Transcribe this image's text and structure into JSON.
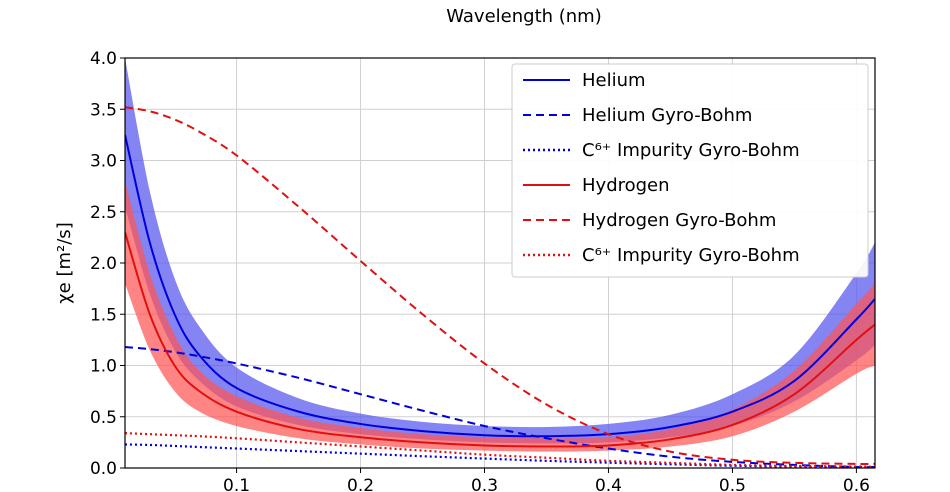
{
  "chart_data": {
    "type": "line",
    "top_title": "Wavelength (nm)",
    "ylabel": "χe [m²/s]",
    "xlabel": "",
    "xlim": [
      0.01,
      0.615
    ],
    "ylim": [
      0.0,
      4.0
    ],
    "xticks": [
      0.1,
      0.2,
      0.3,
      0.4,
      0.5,
      0.6
    ],
    "xtick_labels": [
      "0.1",
      "0.2",
      "0.3",
      "0.4",
      "0.5",
      "0.6"
    ],
    "yticks": [
      0.0,
      0.5,
      1.0,
      1.5,
      2.0,
      2.5,
      3.0,
      3.5,
      4.0
    ],
    "ytick_labels": [
      "0.0",
      "0.5",
      "1.0",
      "1.5",
      "2.0",
      "2.5",
      "3.0",
      "3.5",
      "4.0"
    ],
    "grid": true,
    "legend_position": "top-right",
    "colors": {
      "helium": "#0000dd",
      "hydrogen": "#e01010",
      "helium_band": "#5555ee",
      "hydrogen_band": "#ff5555"
    },
    "x": [
      0.01,
      0.03,
      0.05,
      0.07,
      0.1,
      0.15,
      0.2,
      0.25,
      0.3,
      0.35,
      0.4,
      0.45,
      0.5,
      0.55,
      0.6,
      0.615
    ],
    "series": [
      {
        "name": "Helium",
        "style": "solid",
        "color": "#0000dd",
        "values": [
          3.25,
          2.2,
          1.5,
          1.1,
          0.78,
          0.55,
          0.43,
          0.36,
          0.32,
          0.31,
          0.33,
          0.4,
          0.55,
          0.85,
          1.45,
          1.65
        ],
        "band_upper": [
          4.0,
          2.7,
          1.85,
          1.38,
          0.98,
          0.68,
          0.53,
          0.45,
          0.41,
          0.4,
          0.43,
          0.52,
          0.72,
          1.1,
          1.9,
          2.2
        ],
        "band_lower": [
          2.55,
          1.7,
          1.15,
          0.85,
          0.6,
          0.42,
          0.33,
          0.28,
          0.25,
          0.24,
          0.25,
          0.3,
          0.41,
          0.65,
          1.05,
          1.2
        ]
      },
      {
        "name": "Helium Gyro-Bohm",
        "style": "dashed",
        "color": "#0000dd",
        "values": [
          1.18,
          1.16,
          1.13,
          1.09,
          1.02,
          0.88,
          0.72,
          0.56,
          0.41,
          0.29,
          0.19,
          0.11,
          0.06,
          0.03,
          0.01,
          0.01
        ]
      },
      {
        "name": "C⁶⁺ Impurity Gyro-Bohm",
        "style": "dotted",
        "color": "#0000dd",
        "values": [
          0.23,
          0.225,
          0.215,
          0.205,
          0.19,
          0.165,
          0.14,
          0.115,
          0.092,
          0.07,
          0.052,
          0.036,
          0.022,
          0.013,
          0.006,
          0.005
        ]
      },
      {
        "name": "Hydrogen",
        "style": "solid",
        "color": "#e01010",
        "values": [
          2.3,
          1.5,
          1.0,
          0.75,
          0.55,
          0.38,
          0.3,
          0.25,
          0.22,
          0.21,
          0.22,
          0.28,
          0.42,
          0.72,
          1.25,
          1.4
        ],
        "band_upper": [
          2.8,
          1.9,
          1.3,
          0.95,
          0.7,
          0.49,
          0.39,
          0.33,
          0.3,
          0.29,
          0.3,
          0.38,
          0.57,
          0.95,
          1.6,
          1.8
        ],
        "band_lower": [
          1.8,
          1.15,
          0.75,
          0.55,
          0.41,
          0.29,
          0.23,
          0.19,
          0.17,
          0.16,
          0.17,
          0.21,
          0.31,
          0.55,
          0.92,
          1.0
        ]
      },
      {
        "name": "Hydrogen Gyro-Bohm",
        "style": "dashed",
        "color": "#e01010",
        "values": [
          3.52,
          3.48,
          3.4,
          3.28,
          3.05,
          2.55,
          2.02,
          1.5,
          1.02,
          0.62,
          0.33,
          0.16,
          0.08,
          0.05,
          0.04,
          0.04
        ]
      },
      {
        "name": "C⁶⁺ Impurity Gyro-Bohm",
        "style": "dotted",
        "color": "#e01010",
        "values": [
          0.34,
          0.33,
          0.32,
          0.31,
          0.29,
          0.25,
          0.21,
          0.17,
          0.13,
          0.1,
          0.07,
          0.05,
          0.03,
          0.02,
          0.015,
          0.012
        ]
      }
    ]
  }
}
